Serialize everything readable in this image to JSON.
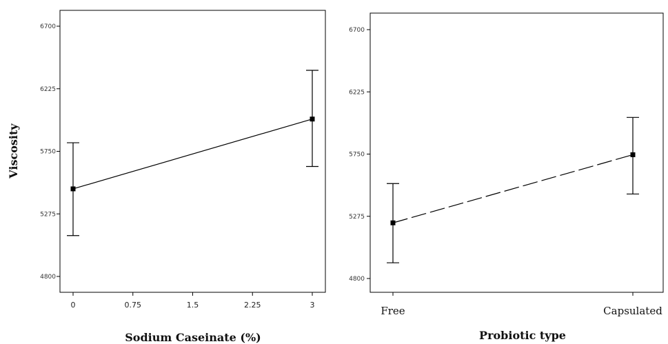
{
  "chart_data": [
    {
      "type": "line",
      "title": "",
      "xlabel": "Sodium Caseinate (%)",
      "ylabel": "Viscosity",
      "x_ticks": [
        "0",
        "0.75",
        "1.5",
        "2.25",
        "3"
      ],
      "y_ticks": [
        "6700",
        "6225",
        "5750",
        "5275",
        "4800"
      ],
      "xlim": [
        0,
        3
      ],
      "ylim": [
        4800,
        6700
      ],
      "line_style": "solid",
      "grid": false,
      "series": [
        {
          "x": [
            0,
            3
          ],
          "y": [
            5465,
            5995
          ],
          "lower": [
            5110,
            5635
          ],
          "upper": [
            5815,
            6365
          ]
        }
      ]
    },
    {
      "type": "line",
      "title": "",
      "xlabel": "Probiotic type",
      "ylabel": "",
      "categories": [
        "Free",
        "Capsulated"
      ],
      "y_ticks": [
        "6700",
        "6225",
        "5750",
        "5275",
        "4800"
      ],
      "ylim": [
        4800,
        6700
      ],
      "line_style": "dashed",
      "grid": false,
      "series": [
        {
          "values": [
            5225,
            5745
          ],
          "lower": [
            4920,
            5445
          ],
          "upper": [
            5525,
            6030
          ]
        }
      ]
    }
  ]
}
